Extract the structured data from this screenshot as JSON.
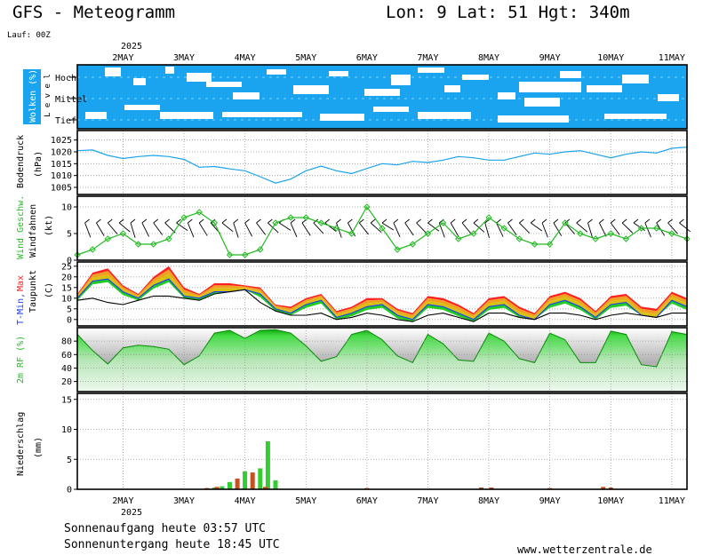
{
  "header": {
    "title": "GFS - Meteogramm",
    "location": "Lon: 9 Lat: 51 Hgt: 340m",
    "run": "Lauf: 00Z"
  },
  "dates": {
    "year": "2025",
    "labels": [
      "2MAY",
      "3MAY",
      "4MAY",
      "5MAY",
      "6MAY",
      "7MAY",
      "8MAY",
      "9MAY",
      "10MAY",
      "11MAY"
    ]
  },
  "footer": {
    "sunrise": "Sonnenaufgang heute 03:57 UTC",
    "sunset": "Sonnenuntergang heute 18:45 UTC",
    "website": "www.wetterzentrale.de"
  },
  "colors": {
    "cloud": "#1aa3ee",
    "pressure_line": "#1aa3ee",
    "wind_line": "#22bb22",
    "precip_rain": "#33cc33",
    "precip_conv": "#c8501e",
    "rh_green": "#22bb22",
    "temp_red": "#ff2020",
    "temp_orange": "#f0a020"
  },
  "panels": {
    "clouds": {
      "title": "Wolken (%)",
      "level_label": "L e v e l",
      "levels": [
        "Hoch",
        "Mittel",
        "Tief"
      ]
    },
    "pressure": {
      "title": "Bodendruck",
      "unit": "(hPa)",
      "ticks": [
        "1025",
        "1020",
        "1015",
        "1010",
        "1005"
      ]
    },
    "wind": {
      "title": "Wind Geschw.",
      "subtitle": "Windfahnen",
      "unit": "(kt)",
      "ticks": [
        "10",
        "5",
        "0"
      ]
    },
    "temperature": {
      "title_a": "T-Min,",
      "title_b": "Max",
      "unit": "(C)",
      "subtitle": "Taupunkt",
      "ticks": [
        "25",
        "20",
        "15",
        "10",
        "5",
        "0"
      ]
    },
    "humidity": {
      "title": "2m RF (%)",
      "ticks": [
        "80",
        "60",
        "40",
        "20"
      ]
    },
    "precip": {
      "title": "Niederschlag",
      "unit": "(mm)",
      "ticks": [
        "15",
        "10",
        "5",
        "0"
      ]
    }
  },
  "chart_data": [
    {
      "type": "line",
      "panel": "pressure",
      "x_unit": "hours since 2025-05-01 06Z",
      "ylabel": "(hPa)",
      "ylim": [
        1002,
        1029
      ],
      "x": [
        0,
        6,
        12,
        18,
        24,
        30,
        36,
        42,
        48,
        54,
        60,
        66,
        72,
        78,
        84,
        90,
        96,
        102,
        108,
        114,
        120,
        126,
        132,
        138,
        144,
        150,
        156,
        162,
        168,
        174,
        180,
        186,
        192,
        198,
        204,
        210,
        216,
        222,
        228,
        234,
        240
      ],
      "values": [
        1020.5,
        1020.8,
        1018.5,
        1017.2,
        1018.0,
        1018.5,
        1018.0,
        1016.8,
        1013.5,
        1013.8,
        1012.8,
        1012.0,
        1009.5,
        1006.8,
        1008.5,
        1012.0,
        1014.0,
        1012.0,
        1010.8,
        1013.0,
        1015.0,
        1014.5,
        1016.0,
        1015.5,
        1016.5,
        1018.0,
        1017.5,
        1016.5,
        1016.5,
        1018.0,
        1019.5,
        1019.0,
        1020.0,
        1020.5,
        1019.0,
        1017.5,
        1019.0,
        1020.0,
        1019.5,
        1021.5,
        1022.0
      ]
    },
    {
      "type": "line",
      "panel": "wind",
      "x_unit": "hours since 2025-05-01 06Z",
      "ylabel": "(kt)",
      "ylim": [
        0,
        12
      ],
      "x": [
        0,
        6,
        12,
        18,
        24,
        30,
        36,
        42,
        48,
        54,
        60,
        66,
        72,
        78,
        84,
        90,
        96,
        102,
        108,
        114,
        120,
        126,
        132,
        138,
        144,
        150,
        156,
        162,
        168,
        174,
        180,
        186,
        192,
        198,
        204,
        210,
        216,
        222,
        228,
        234,
        240
      ],
      "values": [
        1,
        2,
        4,
        5,
        3,
        3,
        4,
        8,
        9,
        7,
        1,
        1,
        2,
        7,
        8,
        8,
        7,
        6,
        5,
        10,
        6,
        2,
        3,
        5,
        7,
        4,
        5,
        8,
        6,
        4,
        3,
        3,
        7,
        5,
        4,
        5,
        4,
        6,
        6,
        5,
        4
      ]
    },
    {
      "type": "line",
      "panel": "temperature",
      "x_unit": "hours since 2025-05-01 06Z",
      "ylabel": "(C)",
      "ylim": [
        -3,
        27
      ],
      "x": [
        0,
        6,
        12,
        18,
        24,
        30,
        36,
        42,
        48,
        54,
        60,
        66,
        72,
        78,
        84,
        90,
        96,
        102,
        108,
        114,
        120,
        126,
        132,
        138,
        144,
        150,
        156,
        162,
        168,
        174,
        180,
        186,
        192,
        198,
        204,
        210,
        216,
        222,
        228,
        234,
        240
      ],
      "series": [
        {
          "name": "T-Max",
          "values": [
            12,
            22,
            24,
            16,
            12,
            20,
            25,
            15,
            12,
            17,
            17,
            16,
            15,
            7,
            6,
            10,
            12,
            4,
            6,
            10,
            10,
            5,
            3,
            11,
            10,
            7,
            3,
            10,
            11,
            6,
            3,
            11,
            13,
            10,
            4,
            11,
            12,
            6,
            5,
            13,
            10
          ]
        },
        {
          "name": "T-Min",
          "values": [
            10,
            18,
            19,
            13,
            10,
            16,
            19,
            11,
            10,
            13,
            13,
            14,
            12,
            5,
            3,
            7,
            9,
            1,
            3,
            6,
            7,
            2,
            0,
            7,
            6,
            3,
            0,
            6,
            7,
            2,
            0,
            7,
            9,
            6,
            1,
            7,
            8,
            2,
            1,
            9,
            6
          ]
        },
        {
          "name": "Taupunkt",
          "values": [
            9,
            10,
            8,
            7,
            9,
            11,
            11,
            10,
            9,
            12,
            13,
            14,
            8,
            4,
            2,
            2,
            3,
            0,
            1,
            3,
            2,
            0,
            -1,
            2,
            3,
            1,
            -1,
            3,
            3,
            1,
            0,
            3,
            3,
            2,
            0,
            2,
            3,
            2,
            1,
            3,
            3
          ]
        }
      ]
    },
    {
      "type": "area",
      "panel": "humidity",
      "x_unit": "hours since 2025-05-01 06Z",
      "ylabel": "(%)",
      "ylim": [
        5,
        100
      ],
      "x": [
        0,
        6,
        12,
        18,
        24,
        30,
        36,
        42,
        48,
        54,
        60,
        66,
        72,
        78,
        84,
        90,
        96,
        102,
        108,
        114,
        120,
        126,
        132,
        138,
        144,
        150,
        156,
        162,
        168,
        174,
        180,
        186,
        192,
        198,
        204,
        210,
        216,
        222,
        228,
        234,
        240
      ],
      "values": [
        90,
        66,
        46,
        70,
        74,
        72,
        68,
        45,
        58,
        92,
        96,
        84,
        96,
        97,
        92,
        73,
        50,
        57,
        90,
        96,
        82,
        58,
        48,
        90,
        76,
        52,
        50,
        92,
        80,
        54,
        48,
        92,
        82,
        48,
        48,
        95,
        90,
        45,
        42,
        94,
        90
      ]
    },
    {
      "type": "bar",
      "panel": "precip",
      "x_unit": "hours since 2025-05-01 06Z",
      "ylabel": "(mm)",
      "ylim": [
        0,
        16
      ],
      "series": [
        {
          "name": "rain",
          "x": [
            54,
            57,
            60,
            66,
            72,
            75,
            78
          ],
          "values": [
            0.3,
            0.5,
            1.2,
            3.0,
            3.5,
            8.0,
            1.5
          ]
        },
        {
          "name": "convective",
          "x": [
            51,
            55,
            63,
            69,
            74,
            114,
            159,
            163,
            186,
            207,
            210
          ],
          "values": [
            0.2,
            0.4,
            1.8,
            2.8,
            0.4,
            0.2,
            0.3,
            0.3,
            0.2,
            0.4,
            0.3
          ]
        }
      ]
    }
  ]
}
